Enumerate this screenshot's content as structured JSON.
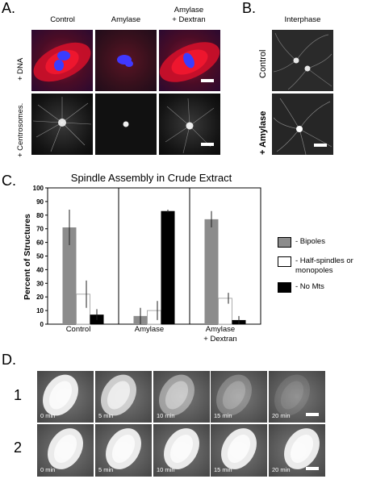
{
  "panel_letters": {
    "a": "A.",
    "b": "B.",
    "c": "C.",
    "d": "D."
  },
  "panelA": {
    "col_headers": [
      "Control",
      "Amylase",
      "Amylase\n+ Dextran"
    ],
    "col_header_line1": [
      "Control",
      "Amylase",
      "Amylase"
    ],
    "col_header_line2": [
      "",
      "",
      "+ Dextran"
    ],
    "row_labels": [
      "+ DNA",
      "+ Centrosomes."
    ]
  },
  "panelB": {
    "header": "Interphase",
    "row_labels": [
      "Control",
      "+ Amylase"
    ]
  },
  "panelD": {
    "row_numbers": [
      "1",
      "2"
    ],
    "time_labels": [
      "0 min",
      "5 min",
      "10 min",
      "15 min",
      "20 min"
    ]
  },
  "chart_data": {
    "type": "bar",
    "title": "Spindle Assembly in Crude Extract",
    "ylabel": "Percent of Structures",
    "xlabel": "",
    "ylim": [
      0,
      100
    ],
    "yticks": [
      0,
      10,
      20,
      30,
      40,
      50,
      60,
      70,
      80,
      90,
      100
    ],
    "categories": [
      "Control",
      "Amylase",
      "Amylase\n+ Dextran"
    ],
    "category_line1": [
      "Control",
      "Amylase",
      "Amylase"
    ],
    "category_line2": [
      "",
      "",
      "+ Dextran"
    ],
    "grid": "vertical lines between categories",
    "legend_placement": "right",
    "series": [
      {
        "name": "- Bipoles",
        "color": "#8c8c8c",
        "values": [
          71,
          6,
          77
        ],
        "errors": [
          13,
          6,
          6
        ]
      },
      {
        "name": "- Half-spindles or monopoles",
        "color": "#ffffff",
        "values": [
          22,
          10,
          19
        ],
        "errors": [
          10,
          7,
          4
        ]
      },
      {
        "name": "- No Mts",
        "color": "#000000",
        "values": [
          7,
          83,
          3
        ],
        "errors": [
          4,
          1,
          3
        ]
      }
    ],
    "legend_line1": [
      "- Bipoles",
      "- Half-spindles or",
      "- No Mts"
    ],
    "legend_line2": [
      "",
      "monopoles",
      ""
    ]
  }
}
